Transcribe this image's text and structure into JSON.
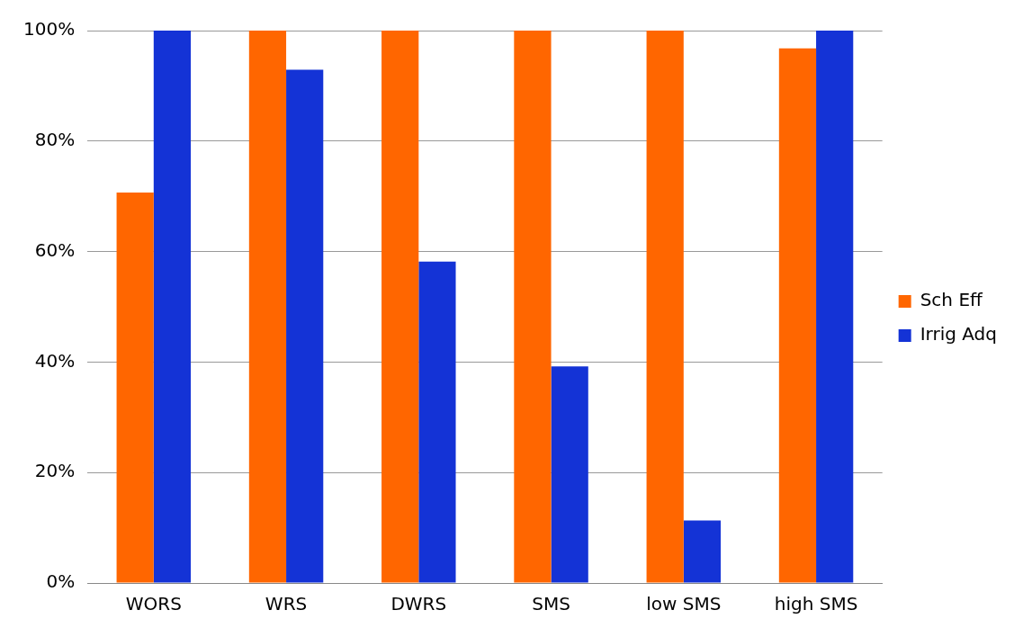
{
  "chart_data": {
    "type": "bar",
    "categories": [
      "WORS",
      "WRS",
      "DWRS",
      "SMS",
      "low SMS",
      "high SMS"
    ],
    "series": [
      {
        "name": "Sch Eff",
        "color": "#ff6600",
        "values": [
          70.7,
          100,
          100,
          100,
          100,
          96.8
        ]
      },
      {
        "name": "Irrig Adq",
        "color": "#1433d6",
        "values": [
          100,
          92.9,
          58.2,
          39.2,
          11.3,
          100
        ]
      }
    ],
    "ylim": [
      0,
      100
    ],
    "yticks": [
      {
        "value": 0,
        "label": "0%"
      },
      {
        "value": 20,
        "label": "20%"
      },
      {
        "value": 40,
        "label": "40%"
      },
      {
        "value": 60,
        "label": "60%"
      },
      {
        "value": 80,
        "label": "80%"
      },
      {
        "value": 100,
        "label": "100%"
      }
    ],
    "grid": "y",
    "legend": "right"
  }
}
